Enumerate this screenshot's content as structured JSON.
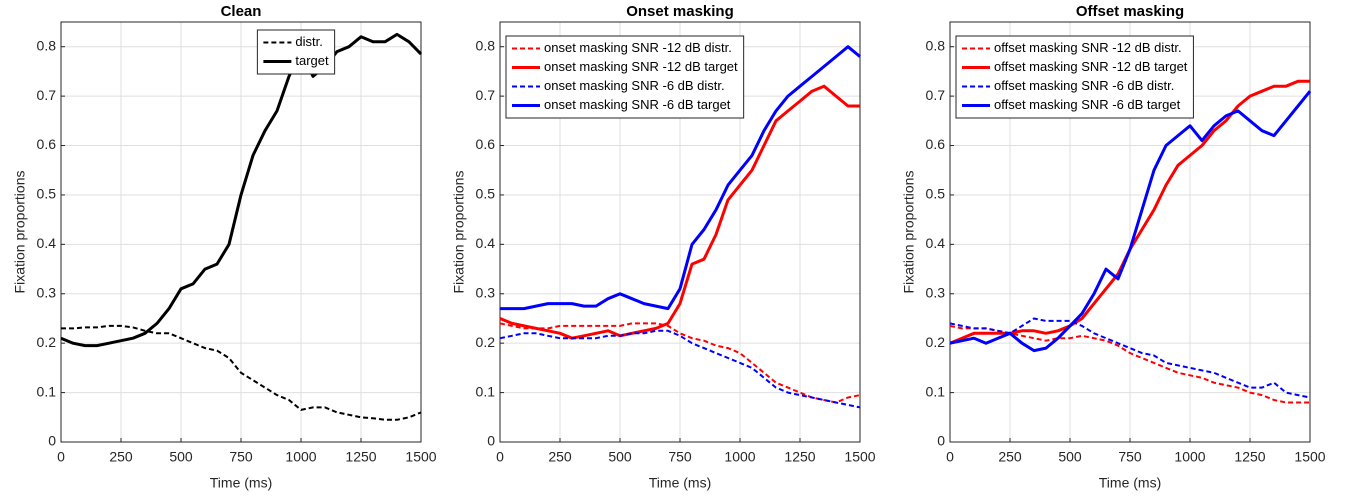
{
  "chart_data": [
    {
      "type": "line",
      "title": "Clean",
      "x_label": "Time (ms)",
      "y_label": "Fixation proportions",
      "x": [
        0,
        50,
        100,
        150,
        200,
        250,
        300,
        350,
        400,
        450,
        500,
        550,
        600,
        650,
        700,
        750,
        800,
        850,
        900,
        950,
        1000,
        1050,
        1100,
        1150,
        1200,
        1250,
        1300,
        1350,
        1400,
        1450,
        1500
      ],
      "xlim": [
        0,
        1500
      ],
      "xticks": [
        0,
        250,
        500,
        750,
        1000,
        1250,
        1500
      ],
      "ylim": [
        0,
        0.85
      ],
      "yticks": [
        0,
        0.1,
        0.2,
        0.3,
        0.4,
        0.5,
        0.6,
        0.7,
        0.8
      ],
      "grid": true,
      "legend": "top-center",
      "series": [
        {
          "name": "distr.",
          "color": "#000000",
          "style": "dashed",
          "values": [
            0.23,
            0.23,
            0.232,
            0.232,
            0.235,
            0.235,
            0.232,
            0.225,
            0.22,
            0.22,
            0.21,
            0.2,
            0.19,
            0.185,
            0.17,
            0.14,
            0.125,
            0.11,
            0.095,
            0.085,
            0.065,
            0.07,
            0.07,
            0.06,
            0.055,
            0.05,
            0.048,
            0.045,
            0.045,
            0.05,
            0.06
          ]
        },
        {
          "name": "target",
          "color": "#000000",
          "style": "solid",
          "values": [
            0.21,
            0.2,
            0.195,
            0.195,
            0.2,
            0.205,
            0.21,
            0.22,
            0.24,
            0.27,
            0.31,
            0.32,
            0.35,
            0.36,
            0.4,
            0.5,
            0.58,
            0.63,
            0.67,
            0.74,
            0.79,
            0.74,
            0.76,
            0.79,
            0.8,
            0.82,
            0.81,
            0.81,
            0.825,
            0.81,
            0.785
          ]
        }
      ]
    },
    {
      "type": "line",
      "title": "Onset masking",
      "x_label": "Time (ms)",
      "y_label": "Fixation proportions",
      "x": [
        0,
        50,
        100,
        150,
        200,
        250,
        300,
        350,
        400,
        450,
        500,
        550,
        600,
        650,
        700,
        750,
        800,
        850,
        900,
        950,
        1000,
        1050,
        1100,
        1150,
        1200,
        1250,
        1300,
        1350,
        1400,
        1450,
        1500
      ],
      "xlim": [
        0,
        1500
      ],
      "xticks": [
        0,
        250,
        500,
        750,
        1000,
        1250,
        1500
      ],
      "ylim": [
        0,
        0.85
      ],
      "yticks": [
        0,
        0.1,
        0.2,
        0.3,
        0.4,
        0.5,
        0.6,
        0.7,
        0.8
      ],
      "grid": true,
      "legend": "top-left",
      "series": [
        {
          "name": "onset masking SNR -12 dB distr.",
          "color": "#ff0000",
          "style": "dashed",
          "values": [
            0.24,
            0.235,
            0.23,
            0.23,
            0.23,
            0.235,
            0.235,
            0.235,
            0.235,
            0.235,
            0.235,
            0.24,
            0.24,
            0.24,
            0.235,
            0.22,
            0.21,
            0.205,
            0.195,
            0.19,
            0.18,
            0.16,
            0.14,
            0.12,
            0.11,
            0.1,
            0.09,
            0.085,
            0.08,
            0.09,
            0.095
          ]
        },
        {
          "name": "onset masking SNR -12 dB target",
          "color": "#ff0000",
          "style": "solid",
          "values": [
            0.25,
            0.24,
            0.235,
            0.23,
            0.225,
            0.22,
            0.21,
            0.215,
            0.22,
            0.225,
            0.215,
            0.22,
            0.225,
            0.23,
            0.24,
            0.28,
            0.36,
            0.37,
            0.42,
            0.49,
            0.52,
            0.55,
            0.6,
            0.65,
            0.67,
            0.69,
            0.71,
            0.72,
            0.7,
            0.68,
            0.68
          ]
        },
        {
          "name": "onset masking SNR -6 dB distr.",
          "color": "#0000ff",
          "style": "dashed",
          "values": [
            0.21,
            0.215,
            0.22,
            0.22,
            0.215,
            0.21,
            0.21,
            0.21,
            0.21,
            0.215,
            0.215,
            0.22,
            0.22,
            0.225,
            0.225,
            0.215,
            0.2,
            0.19,
            0.18,
            0.17,
            0.16,
            0.15,
            0.13,
            0.11,
            0.1,
            0.095,
            0.09,
            0.085,
            0.08,
            0.075,
            0.07
          ]
        },
        {
          "name": "onset masking SNR -6 dB target",
          "color": "#0000ff",
          "style": "solid",
          "values": [
            0.27,
            0.27,
            0.27,
            0.275,
            0.28,
            0.28,
            0.28,
            0.275,
            0.275,
            0.29,
            0.3,
            0.29,
            0.28,
            0.275,
            0.27,
            0.31,
            0.4,
            0.43,
            0.47,
            0.52,
            0.55,
            0.58,
            0.63,
            0.67,
            0.7,
            0.72,
            0.74,
            0.76,
            0.78,
            0.8,
            0.78
          ]
        }
      ]
    },
    {
      "type": "line",
      "title": "Offset masking",
      "x_label": "Time (ms)",
      "y_label": "Fixation proportions",
      "x": [
        0,
        50,
        100,
        150,
        200,
        250,
        300,
        350,
        400,
        450,
        500,
        550,
        600,
        650,
        700,
        750,
        800,
        850,
        900,
        950,
        1000,
        1050,
        1100,
        1150,
        1200,
        1250,
        1300,
        1350,
        1400,
        1450,
        1500
      ],
      "xlim": [
        0,
        1500
      ],
      "xticks": [
        0,
        250,
        500,
        750,
        1000,
        1250,
        1500
      ],
      "ylim": [
        0,
        0.85
      ],
      "yticks": [
        0,
        0.1,
        0.2,
        0.3,
        0.4,
        0.5,
        0.6,
        0.7,
        0.8
      ],
      "grid": true,
      "legend": "top-left",
      "series": [
        {
          "name": "offset masking SNR -12 dB distr.",
          "color": "#ff0000",
          "style": "dashed",
          "values": [
            0.235,
            0.23,
            0.23,
            0.23,
            0.225,
            0.22,
            0.215,
            0.21,
            0.205,
            0.21,
            0.21,
            0.215,
            0.21,
            0.205,
            0.195,
            0.18,
            0.17,
            0.16,
            0.15,
            0.14,
            0.135,
            0.13,
            0.12,
            0.115,
            0.11,
            0.1,
            0.095,
            0.085,
            0.08,
            0.08,
            0.08
          ]
        },
        {
          "name": "offset masking SNR -12 dB target",
          "color": "#ff0000",
          "style": "solid",
          "values": [
            0.2,
            0.21,
            0.22,
            0.22,
            0.22,
            0.22,
            0.225,
            0.225,
            0.22,
            0.225,
            0.235,
            0.25,
            0.28,
            0.31,
            0.34,
            0.39,
            0.43,
            0.47,
            0.52,
            0.56,
            0.58,
            0.6,
            0.63,
            0.65,
            0.68,
            0.7,
            0.71,
            0.72,
            0.72,
            0.73,
            0.73
          ]
        },
        {
          "name": "offset masking SNR -6 dB distr.",
          "color": "#0000ff",
          "style": "dashed",
          "values": [
            0.24,
            0.235,
            0.23,
            0.23,
            0.225,
            0.22,
            0.235,
            0.25,
            0.245,
            0.245,
            0.245,
            0.235,
            0.22,
            0.21,
            0.2,
            0.19,
            0.18,
            0.175,
            0.16,
            0.155,
            0.15,
            0.145,
            0.14,
            0.13,
            0.12,
            0.11,
            0.11,
            0.12,
            0.1,
            0.095,
            0.09
          ]
        },
        {
          "name": "offset masking SNR -6 dB target",
          "color": "#0000ff",
          "style": "solid",
          "values": [
            0.2,
            0.205,
            0.21,
            0.2,
            0.21,
            0.22,
            0.2,
            0.185,
            0.19,
            0.21,
            0.235,
            0.26,
            0.3,
            0.35,
            0.33,
            0.39,
            0.47,
            0.55,
            0.6,
            0.62,
            0.64,
            0.61,
            0.64,
            0.66,
            0.67,
            0.65,
            0.63,
            0.62,
            0.65,
            0.68,
            0.71
          ]
        }
      ]
    }
  ]
}
